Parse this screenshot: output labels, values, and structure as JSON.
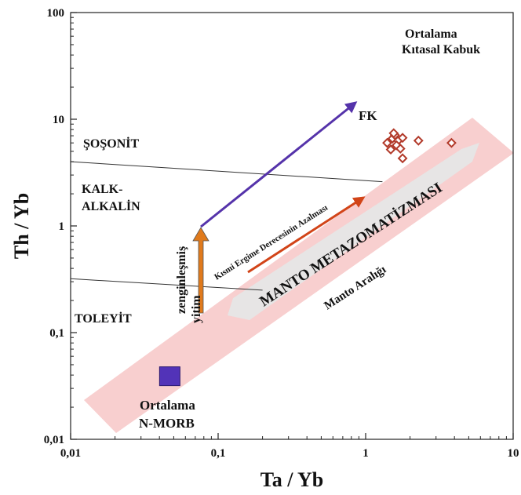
{
  "chart_data": {
    "type": "scatter",
    "xscale": "log",
    "yscale": "log",
    "xlim": [
      0.01,
      10
    ],
    "ylim": [
      0.01,
      100
    ],
    "xlabel": "Ta / Yb",
    "ylabel": "Th / Yb",
    "x_ticks": [
      {
        "value": 0.01,
        "label": "0,01"
      },
      {
        "value": 0.1,
        "label": "0,1"
      },
      {
        "value": 1,
        "label": "1"
      },
      {
        "value": 10,
        "label": "10"
      }
    ],
    "y_ticks": [
      {
        "value": 0.01,
        "label": "0,01"
      },
      {
        "value": 0.1,
        "label": "0,1"
      },
      {
        "value": 1,
        "label": "1"
      },
      {
        "value": 10,
        "label": "10"
      },
      {
        "value": 100,
        "label": "100"
      }
    ],
    "grid": false,
    "points": [
      {
        "x": 1.4,
        "y": 6.0
      },
      {
        "x": 1.52,
        "y": 6.6
      },
      {
        "x": 1.58,
        "y": 7.1
      },
      {
        "x": 1.66,
        "y": 6.3
      },
      {
        "x": 1.48,
        "y": 5.2
      },
      {
        "x": 1.62,
        "y": 5.7
      },
      {
        "x": 1.72,
        "y": 5.3
      },
      {
        "x": 1.78,
        "y": 6.7
      },
      {
        "x": 1.55,
        "y": 7.4
      },
      {
        "x": 1.78,
        "y": 4.3
      },
      {
        "x": 2.28,
        "y": 6.3
      },
      {
        "x": 3.82,
        "y": 6.0
      }
    ],
    "point_color": "#b23a2a",
    "reference_points": [
      {
        "label": "Ortalama N-MORB",
        "x": 0.047,
        "y": 0.039,
        "color": "#5233b8"
      }
    ],
    "reference_labels": {
      "nmorb": [
        "Ortalama",
        "N-MORB"
      ],
      "continental_crust": [
        "Ortalama",
        "Kıtasal Kabuk"
      ],
      "fk": "FK"
    },
    "field_labels": {
      "shoshonite": "ŞOŞONİT",
      "calc_alkaline": [
        "KALK-",
        "ALKALİN"
      ],
      "tholeiite": "TOLEYİT"
    },
    "mantle_array": {
      "label": "Manto Aralığı",
      "arrow_label": "MANTO METAZOMATİZMASI",
      "band_color": "#f8cfcf"
    },
    "vectors": {
      "subduction": [
        "zenginleşmiş",
        "yitim"
      ],
      "melting": "Kısmi Ergime Derecesinin Azalması",
      "enrichment_arrow_color": "#5533aa",
      "subduction_arrow_color": "#e07a1c",
      "melting_arrow_color": "#d24418"
    },
    "boundaries": [
      {
        "from": {
          "x": 0.01,
          "y": 4.0
        },
        "to": {
          "x": 1.3,
          "y": 2.6
        }
      },
      {
        "from": {
          "x": 0.01,
          "y": 0.32
        },
        "to": {
          "x": 0.2,
          "y": 0.25
        }
      }
    ]
  }
}
